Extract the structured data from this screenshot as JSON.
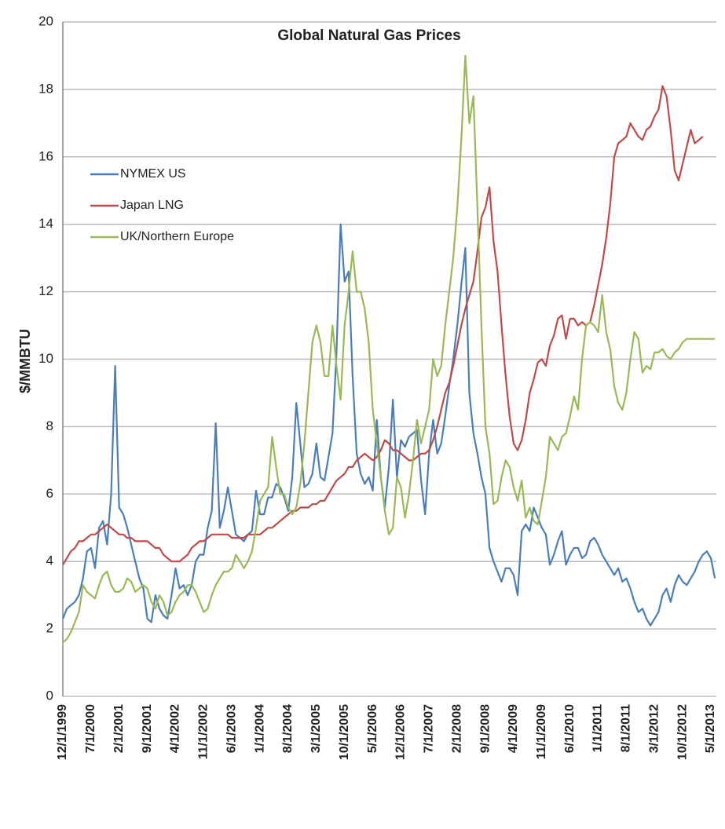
{
  "chart_data": {
    "type": "line",
    "title": "Global Natural Gas Prices",
    "ylabel": "$/MMBTU",
    "categories": [
      "12/1/1999",
      null,
      null,
      null,
      null,
      null,
      null,
      "7/1/2000",
      null,
      null,
      null,
      null,
      null,
      null,
      "2/1/2001",
      null,
      null,
      null,
      null,
      null,
      null,
      "9/1/2001",
      null,
      null,
      null,
      null,
      null,
      null,
      "4/1/2002",
      null,
      null,
      null,
      null,
      null,
      null,
      "11/1/2002",
      null,
      null,
      null,
      null,
      null,
      null,
      "6/1/2003",
      null,
      null,
      null,
      null,
      null,
      null,
      "1/1/2004",
      null,
      null,
      null,
      null,
      null,
      null,
      "8/1/2004",
      null,
      null,
      null,
      null,
      null,
      null,
      "3/1/2005",
      null,
      null,
      null,
      null,
      null,
      null,
      "10/1/2005",
      null,
      null,
      null,
      null,
      null,
      null,
      "5/1/2006",
      null,
      null,
      null,
      null,
      null,
      null,
      "12/1/2006",
      null,
      null,
      null,
      null,
      null,
      null,
      "7/1/2007",
      null,
      null,
      null,
      null,
      null,
      null,
      "2/1/2008",
      null,
      null,
      null,
      null,
      null,
      null,
      "9/1/2008",
      null,
      null,
      null,
      null,
      null,
      null,
      "4/1/2009",
      null,
      null,
      null,
      null,
      null,
      null,
      "11/1/2009",
      null,
      null,
      null,
      null,
      null,
      null,
      "6/1/2010",
      null,
      null,
      null,
      null,
      null,
      null,
      "1/1/2011",
      null,
      null,
      null,
      null,
      null,
      null,
      "8/1/2011",
      null,
      null,
      null,
      null,
      null,
      null,
      "3/1/2012",
      null,
      null,
      null,
      null,
      null,
      null,
      "10/1/2012",
      null,
      null,
      null,
      null,
      null,
      null,
      "5/1/2013",
      null
    ],
    "series": [
      {
        "name": "NYMEX US",
        "color": "#4a7ebb",
        "values": [
          2.3,
          2.6,
          2.7,
          2.8,
          3.0,
          3.5,
          4.3,
          4.4,
          3.8,
          5.0,
          5.2,
          4.5,
          6.0,
          9.8,
          5.6,
          5.4,
          5.0,
          4.5,
          4.0,
          3.5,
          3.2,
          2.3,
          2.2,
          3.0,
          2.6,
          2.4,
          2.3,
          3.0,
          3.8,
          3.2,
          3.3,
          3.0,
          3.3,
          4.0,
          4.2,
          4.2,
          5.0,
          5.5,
          8.1,
          5.0,
          5.5,
          6.2,
          5.5,
          4.8,
          4.7,
          4.6,
          4.8,
          4.9,
          6.1,
          5.4,
          5.4,
          5.9,
          5.9,
          6.3,
          6.2,
          5.9,
          5.5,
          6.5,
          8.7,
          7.5,
          6.2,
          6.3,
          6.6,
          7.5,
          6.5,
          6.4,
          7.1,
          7.8,
          10.2,
          14.0,
          12.3,
          12.6,
          9.5,
          7.2,
          6.6,
          6.3,
          6.5,
          6.1,
          8.2,
          6.5,
          5.6,
          6.8,
          8.8,
          6.5,
          7.6,
          7.4,
          7.7,
          7.8,
          7.9,
          6.4,
          5.4,
          7.2,
          8.2,
          7.2,
          7.5,
          8.3,
          9.2,
          10.0,
          11.0,
          12.2,
          13.3,
          9.0,
          7.8,
          7.2,
          6.5,
          6.0,
          4.4,
          4.0,
          3.7,
          3.4,
          3.8,
          3.8,
          3.6,
          3.0,
          4.9,
          5.1,
          4.9,
          5.6,
          5.3,
          5.0,
          4.8,
          3.9,
          4.2,
          4.6,
          4.9,
          3.9,
          4.2,
          4.4,
          4.4,
          4.1,
          4.2,
          4.6,
          4.7,
          4.5,
          4.2,
          4.0,
          3.8,
          3.6,
          3.8,
          3.4,
          3.5,
          3.2,
          2.8,
          2.5,
          2.6,
          2.3,
          2.1,
          2.3,
          2.5,
          3.0,
          3.2,
          2.8,
          3.3,
          3.6,
          3.4,
          3.3,
          3.5,
          3.7,
          4.0,
          4.2,
          4.3,
          4.1,
          3.5
        ]
      },
      {
        "name": "Japan LNG",
        "color": "#be4b48",
        "values": [
          3.9,
          4.1,
          4.3,
          4.4,
          4.6,
          4.6,
          4.7,
          4.8,
          4.8,
          4.9,
          5.0,
          5.1,
          5.0,
          4.9,
          4.8,
          4.8,
          4.7,
          4.7,
          4.6,
          4.6,
          4.6,
          4.6,
          4.5,
          4.4,
          4.4,
          4.2,
          4.1,
          4.0,
          4.0,
          4.0,
          4.1,
          4.2,
          4.4,
          4.5,
          4.6,
          4.6,
          4.7,
          4.8,
          4.8,
          4.8,
          4.8,
          4.8,
          4.7,
          4.7,
          4.7,
          4.7,
          4.8,
          4.8,
          4.8,
          4.8,
          4.9,
          5.0,
          5.0,
          5.1,
          5.2,
          5.3,
          5.4,
          5.5,
          5.5,
          5.6,
          5.6,
          5.6,
          5.7,
          5.7,
          5.8,
          5.8,
          6.0,
          6.2,
          6.4,
          6.5,
          6.6,
          6.8,
          6.8,
          7.0,
          7.1,
          7.2,
          7.1,
          7.0,
          7.1,
          7.3,
          7.6,
          7.5,
          7.3,
          7.3,
          7.2,
          7.1,
          7.0,
          7.0,
          7.1,
          7.2,
          7.2,
          7.3,
          7.6,
          8.0,
          8.5,
          9.0,
          9.3,
          9.8,
          10.4,
          11.0,
          11.5,
          11.9,
          12.3,
          13.2,
          14.2,
          14.5,
          15.1,
          13.5,
          12.6,
          11.0,
          9.5,
          8.3,
          7.5,
          7.3,
          7.6,
          8.2,
          9.0,
          9.4,
          9.9,
          10.0,
          9.8,
          10.4,
          10.7,
          11.2,
          11.3,
          10.6,
          11.2,
          11.2,
          11.0,
          11.1,
          11.0,
          11.1,
          11.6,
          12.2,
          12.8,
          13.6,
          14.6,
          16.0,
          16.4,
          16.5,
          16.6,
          17.0,
          16.8,
          16.6,
          16.5,
          16.8,
          16.9,
          17.2,
          17.4,
          18.1,
          17.8,
          16.8,
          15.6,
          15.3,
          15.8,
          16.3,
          16.8,
          16.4,
          16.5,
          16.6,
          null,
          null,
          null
        ]
      },
      {
        "name": "UK/Northern Europe",
        "color": "#98b954",
        "values": [
          1.6,
          1.7,
          1.9,
          2.2,
          2.5,
          3.3,
          3.1,
          3.0,
          2.9,
          3.3,
          3.6,
          3.7,
          3.3,
          3.1,
          3.1,
          3.2,
          3.5,
          3.4,
          3.1,
          3.2,
          3.3,
          3.2,
          2.8,
          2.6,
          3.0,
          2.8,
          2.4,
          2.5,
          2.8,
          3.0,
          3.1,
          3.3,
          3.3,
          3.1,
          2.8,
          2.5,
          2.6,
          3.0,
          3.3,
          3.5,
          3.7,
          3.7,
          3.8,
          4.2,
          4.0,
          3.8,
          4.0,
          4.3,
          5.0,
          5.8,
          6.0,
          6.2,
          7.7,
          6.8,
          6.0,
          6.0,
          5.6,
          5.4,
          5.6,
          6.3,
          7.5,
          9.0,
          10.5,
          11.0,
          10.5,
          9.5,
          9.5,
          11.0,
          9.8,
          8.8,
          11.0,
          12.0,
          13.2,
          12.0,
          12.0,
          11.5,
          10.5,
          8.5,
          7.5,
          6.5,
          5.5,
          4.8,
          5.0,
          6.5,
          6.2,
          5.3,
          6.0,
          7.0,
          8.2,
          7.5,
          8.0,
          8.5,
          10.0,
          9.5,
          9.8,
          11.0,
          12.0,
          13.0,
          14.5,
          16.5,
          19.0,
          17.0,
          17.8,
          14.5,
          11.0,
          8.0,
          7.2,
          5.7,
          5.8,
          6.5,
          7.0,
          6.8,
          6.2,
          5.8,
          6.4,
          5.3,
          5.6,
          5.2,
          5.1,
          5.8,
          6.5,
          7.7,
          7.5,
          7.3,
          7.7,
          7.8,
          8.3,
          8.9,
          8.5,
          10.0,
          11.0,
          11.1,
          11.0,
          10.8,
          11.9,
          10.8,
          10.3,
          9.2,
          8.7,
          8.5,
          9.0,
          10.0,
          10.8,
          10.6,
          9.6,
          9.8,
          9.7,
          10.2,
          10.2,
          10.3,
          10.1,
          10.0,
          10.2,
          10.3,
          10.5,
          10.6,
          10.6,
          10.6,
          10.6,
          10.6,
          10.6,
          10.6,
          10.6
        ]
      }
    ],
    "ylim": [
      0,
      20
    ],
    "yticks": [
      0,
      2,
      4,
      6,
      8,
      10,
      12,
      14,
      16,
      18,
      20
    ],
    "grid": true,
    "legend": "upper left"
  }
}
